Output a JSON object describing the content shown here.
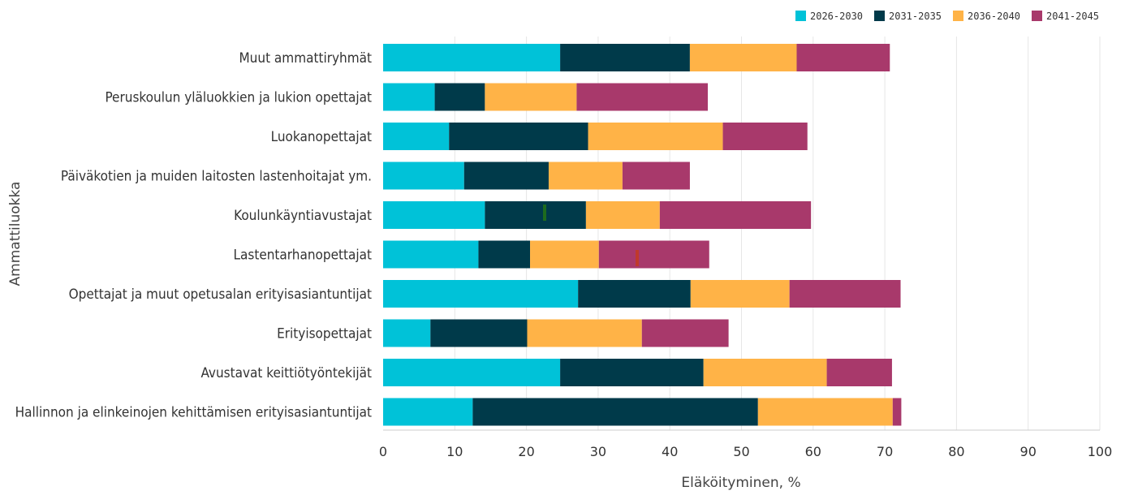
{
  "chart_data": {
    "type": "bar",
    "orientation": "horizontal",
    "stacked": true,
    "title": "",
    "xlabel": "Eläköityminen, %",
    "ylabel": "Ammattiluokka",
    "xlim": [
      0,
      100
    ],
    "xticks": [
      0,
      10,
      20,
      30,
      40,
      50,
      60,
      70,
      80,
      90,
      100
    ],
    "grid": "vertical",
    "legend_position": "top-right",
    "categories": [
      "Muut ammattiryhmät",
      "Peruskoulun yläluokkien ja lukion opettajat",
      "Luokanopettajat",
      "Päiväkotien ja muiden laitosten lastenhoitajat ym.",
      "Koulunkäyntiavustajat",
      "Lastentarhanopettajat",
      "Opettajat ja muut opetusalan erityisasiantuntijat",
      "Erityisopettajat",
      "Avustavat keittiötyöntekijät",
      "Hallinnon ja elinkeinojen kehittämisen erityisasiantuntijat"
    ],
    "series": [
      {
        "name": "2026-2030",
        "color": "#00c2d8",
        "values": [
          24.7,
          7.2,
          9.2,
          11.3,
          14.2,
          13.3,
          27.2,
          6.6,
          24.7,
          12.5
        ]
      },
      {
        "name": "2031-2035",
        "color": "#003a4a",
        "values": [
          18.1,
          7.0,
          19.4,
          11.8,
          14.1,
          7.2,
          15.7,
          13.5,
          20.0,
          39.8
        ]
      },
      {
        "name": "2036-2040",
        "color": "#ffb347",
        "values": [
          14.9,
          12.8,
          18.8,
          10.3,
          10.3,
          9.6,
          13.8,
          16.0,
          17.2,
          18.8
        ]
      },
      {
        "name": "2041-2045",
        "color": "#a8396b",
        "values": [
          13.0,
          18.3,
          11.8,
          9.4,
          21.1,
          15.4,
          15.5,
          12.1,
          9.1,
          1.2
        ]
      }
    ]
  }
}
